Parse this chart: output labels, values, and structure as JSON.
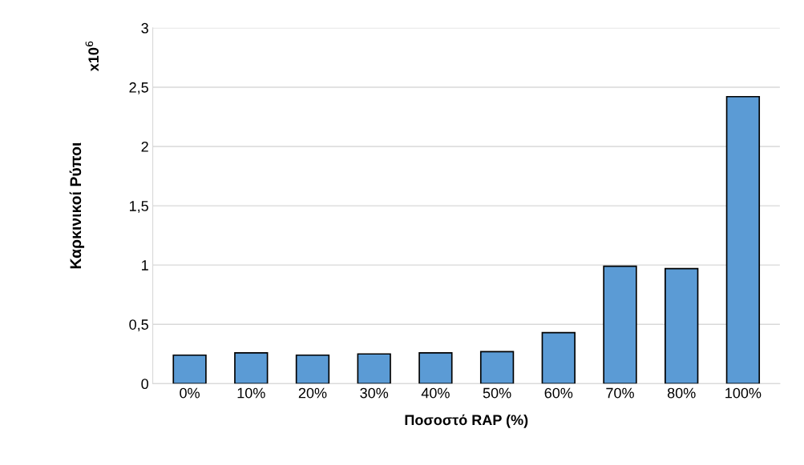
{
  "chart_data": {
    "type": "bar",
    "xlabel": "Ποσοστό RAP (%)",
    "ylabel": "Καρκινικοί Ρύποι",
    "annotations": [
      "x10$^{6}$"
    ],
    "categories": [
      "0%",
      "10%",
      "20%",
      "30%",
      "40%",
      "50%",
      "60%",
      "70%",
      "80%",
      "100%"
    ],
    "values": [
      0.24,
      0.26,
      0.24,
      0.25,
      0.26,
      0.27,
      0.43,
      0.99,
      0.97,
      2.42
    ],
    "color": "#5b9bd5",
    "ylim": [
      0,
      3
    ],
    "yticks": [
      0,
      {
        "value": 0.5,
        "label": "0,5"
      },
      1,
      {
        "value": 1.5,
        "label": "1,5"
      },
      2,
      {
        "value": 2.5,
        "label": "2,5"
      },
      3
    ],
    "grid": "y"
  }
}
